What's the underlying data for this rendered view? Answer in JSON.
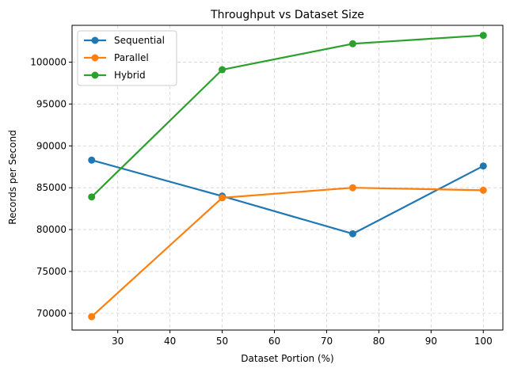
{
  "chart_data": {
    "type": "line",
    "title": "Throughput vs Dataset Size",
    "xlabel": "Dataset Portion (%)",
    "ylabel": "Records per Second",
    "x": [
      25,
      50,
      75,
      100
    ],
    "xlim": [
      21.25,
      103.75
    ],
    "ylim": [
      68000,
      104400
    ],
    "xticks": [
      30,
      40,
      50,
      60,
      70,
      80,
      90,
      100
    ],
    "yticks": [
      70000,
      75000,
      80000,
      85000,
      90000,
      95000,
      100000
    ],
    "grid": true,
    "legend": "top-left",
    "series": [
      {
        "name": "Sequential",
        "color": "#1f77b4",
        "values": [
          88300,
          84000,
          79500,
          87600
        ]
      },
      {
        "name": "Parallel",
        "color": "#ff7f0e",
        "values": [
          69600,
          83800,
          85000,
          84700
        ]
      },
      {
        "name": "Hybrid",
        "color": "#2ca02c",
        "values": [
          83900,
          99100,
          102200,
          103200
        ]
      }
    ]
  }
}
